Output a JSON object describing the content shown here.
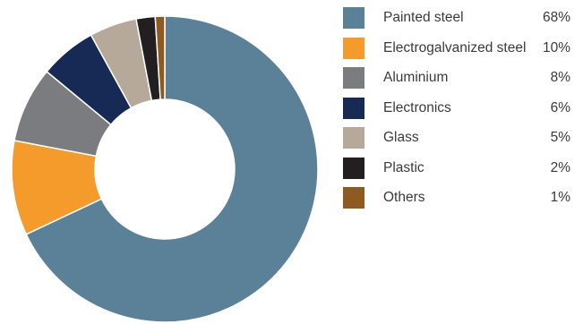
{
  "chart_data": {
    "type": "pie",
    "title": "",
    "donut": true,
    "legend_position": "right",
    "categories": [
      "Painted steel",
      "Electrogalvanized steel",
      "Aluminium",
      "Electronics",
      "Glass",
      "Plastic",
      "Others"
    ],
    "values": [
      68,
      10,
      8,
      6,
      5,
      2,
      1
    ],
    "value_labels": [
      "68%",
      "10%",
      "8%",
      "6%",
      "5%",
      "2%",
      "1%"
    ],
    "colors": [
      "#5a8198",
      "#f49b2b",
      "#7b7c80",
      "#172a55",
      "#b6a99a",
      "#231f20",
      "#8e5a1f"
    ]
  }
}
